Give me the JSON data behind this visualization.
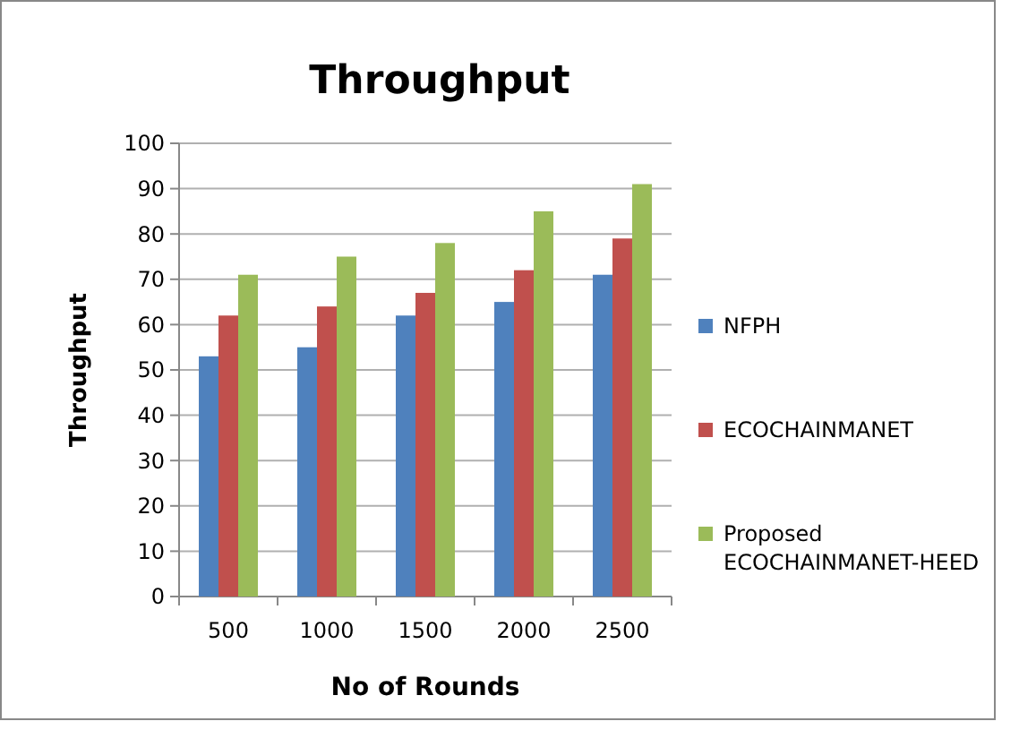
{
  "chart_data": {
    "type": "bar",
    "title": "Throughput",
    "xlabel": "No of Rounds",
    "ylabel": "Throughput",
    "categories": [
      "500",
      "1000",
      "1500",
      "2000",
      "2500"
    ],
    "series": [
      {
        "name": "NFPH",
        "color": "#4f81bd",
        "values": [
          53,
          55,
          62,
          65,
          71
        ]
      },
      {
        "name": "ECOCHAINMANET",
        "color": "#c0504d",
        "values": [
          62,
          64,
          67,
          72,
          79
        ]
      },
      {
        "name": "Proposed ECOCHAINMANET-HEED",
        "color": "#9bbb59",
        "values": [
          71,
          75,
          78,
          85,
          91
        ]
      }
    ],
    "ylim": [
      0,
      100
    ],
    "yticks": [
      0,
      10,
      20,
      30,
      40,
      50,
      60,
      70,
      80,
      90,
      100
    ],
    "grid": "y",
    "legend": "right"
  }
}
